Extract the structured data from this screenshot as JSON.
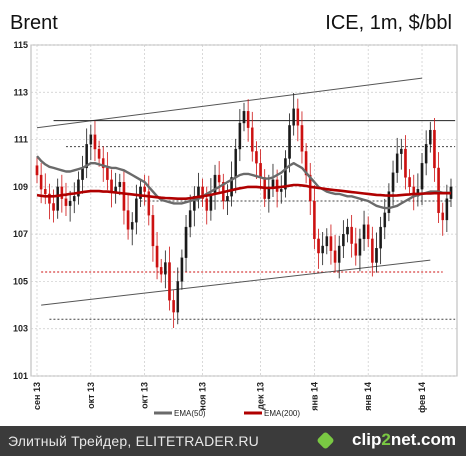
{
  "header": {
    "title": "Brent",
    "subtitle": "ICE, 1m, $/bbl"
  },
  "footer": {
    "source": "Элитный Трейдер, ELITETRADER.RU",
    "brand_prefix": "clip",
    "brand_mid": "2",
    "brand_suffix": "net.com"
  },
  "colors": {
    "up": "#1a1a1a",
    "down": "#cc1111",
    "ema50": "#6a6a6a",
    "ema200": "#b00000",
    "grid": "#c9c9c9"
  },
  "chart_data": {
    "type": "candlestick",
    "ylim": [
      101,
      115
    ],
    "yticks": [
      101,
      103,
      105,
      107,
      109,
      111,
      113,
      115
    ],
    "xticks": [
      "сен 13",
      "окт 13",
      "окт 13",
      "ноя 13",
      "дек 13",
      "янв 14",
      "янв 14",
      "фев 14"
    ],
    "legend": [
      {
        "name": "EMA(50)",
        "color": "#6a6a6a"
      },
      {
        "name": "EMA(200)",
        "color": "#b00000"
      }
    ],
    "channel_upper": [
      [
        0,
        111.5
      ],
      [
        93,
        113.6
      ]
    ],
    "channel_lower": [
      [
        1,
        104.0
      ],
      [
        95,
        105.9
      ]
    ],
    "resistance": [
      [
        4,
        111.8
      ],
      [
        101,
        111.8
      ]
    ],
    "dotted_levels": [
      {
        "value": 110.7,
        "from": 7,
        "to": 101,
        "color": "#444444"
      },
      {
        "value": 108.4,
        "from": 25,
        "to": 100,
        "color": "#444444"
      },
      {
        "value": 105.4,
        "from": 1,
        "to": 98,
        "color": "#cc1111"
      },
      {
        "value": 103.4,
        "from": 3,
        "to": 101,
        "color": "#444444"
      }
    ],
    "ohlc_close": [
      109.5,
      108.9,
      108.7,
      108.3,
      108.0,
      109.0,
      108.5,
      108.2,
      108.4,
      108.6,
      109.3,
      109.8,
      110.8,
      111.2,
      110.6,
      110.2,
      109.8,
      109.3,
      108.8,
      109.0,
      109.2,
      108.0,
      107.2,
      107.5,
      108.5,
      109.0,
      108.8,
      107.8,
      106.5,
      105.6,
      105.3,
      105.8,
      104.2,
      103.7,
      105.0,
      106.0,
      107.3,
      108.0,
      108.6,
      109.0,
      108.5,
      108.0,
      108.7,
      109.5,
      109.2,
      108.4,
      108.6,
      109.4,
      110.6,
      111.7,
      112.2,
      111.5,
      110.5,
      110.0,
      109.4,
      108.5,
      109.0,
      109.3,
      108.8,
      108.9,
      110.2,
      111.6,
      112.3,
      111.6,
      110.5,
      109.5,
      108.4,
      106.8,
      106.2,
      106.5,
      106.9,
      106.3,
      105.8,
      106.5,
      107.0,
      107.3,
      106.6,
      106.1,
      106.8,
      107.4,
      106.8,
      105.8,
      106.4,
      107.3,
      107.9,
      108.8,
      109.6,
      110.4,
      110.6,
      109.4,
      109.0,
      108.6,
      108.9,
      110.0,
      110.8,
      111.4,
      109.8,
      107.9,
      107.6,
      108.5,
      109.0
    ],
    "ema50": [
      110.3,
      110.1,
      109.95,
      109.85,
      109.8,
      109.75,
      109.7,
      109.65,
      109.65,
      109.7,
      109.75,
      109.8,
      109.9,
      110.0,
      110.0,
      109.95,
      109.9,
      109.85,
      109.8,
      109.8,
      109.75,
      109.7,
      109.6,
      109.5,
      109.4,
      109.3,
      109.2,
      109.0,
      108.8,
      108.6,
      108.45,
      108.4,
      108.35,
      108.3,
      108.3,
      108.3,
      108.35,
      108.4,
      108.45,
      108.5,
      108.6,
      108.7,
      108.8,
      108.9,
      109.0,
      109.1,
      109.2,
      109.3,
      109.4,
      109.5,
      109.55,
      109.55,
      109.5,
      109.45,
      109.4,
      109.35,
      109.35,
      109.4,
      109.5,
      109.6,
      109.75,
      109.9,
      110.0,
      109.9,
      109.8,
      109.6,
      109.4,
      109.2,
      109.0,
      108.9,
      108.8,
      108.75,
      108.7,
      108.7,
      108.65,
      108.6,
      108.6,
      108.55,
      108.5,
      108.45,
      108.4,
      108.3,
      108.2,
      108.15,
      108.1,
      108.1,
      108.15,
      108.2,
      108.3,
      108.4,
      108.5,
      108.6,
      108.65,
      108.7,
      108.75,
      108.8,
      108.8,
      108.8,
      108.75,
      108.75,
      108.75
    ],
    "ema200": [
      108.65,
      108.62,
      108.6,
      108.6,
      108.6,
      108.62,
      108.65,
      108.67,
      108.7,
      108.72,
      108.75,
      108.78,
      108.8,
      108.82,
      108.82,
      108.82,
      108.8,
      108.8,
      108.78,
      108.76,
      108.74,
      108.72,
      108.7,
      108.68,
      108.66,
      108.64,
      108.62,
      108.6,
      108.58,
      108.56,
      108.54,
      108.53,
      108.52,
      108.51,
      108.5,
      108.5,
      108.5,
      108.52,
      108.55,
      108.58,
      108.6,
      108.63,
      108.66,
      108.7,
      108.74,
      108.78,
      108.82,
      108.86,
      108.9,
      108.94,
      108.97,
      109.0,
      109.0,
      109.0,
      108.98,
      108.96,
      108.95,
      108.96,
      108.98,
      109.0,
      109.02,
      109.05,
      109.08,
      109.08,
      109.06,
      109.04,
      109.0,
      108.98,
      108.95,
      108.93,
      108.9,
      108.88,
      108.86,
      108.84,
      108.82,
      108.8,
      108.78,
      108.76,
      108.74,
      108.72,
      108.7,
      108.68,
      108.66,
      108.65,
      108.64,
      108.63,
      108.63,
      108.64,
      108.65,
      108.67,
      108.68,
      108.7,
      108.7,
      108.71,
      108.72,
      108.72,
      108.73,
      108.73,
      108.73,
      108.73,
      108.73
    ]
  }
}
